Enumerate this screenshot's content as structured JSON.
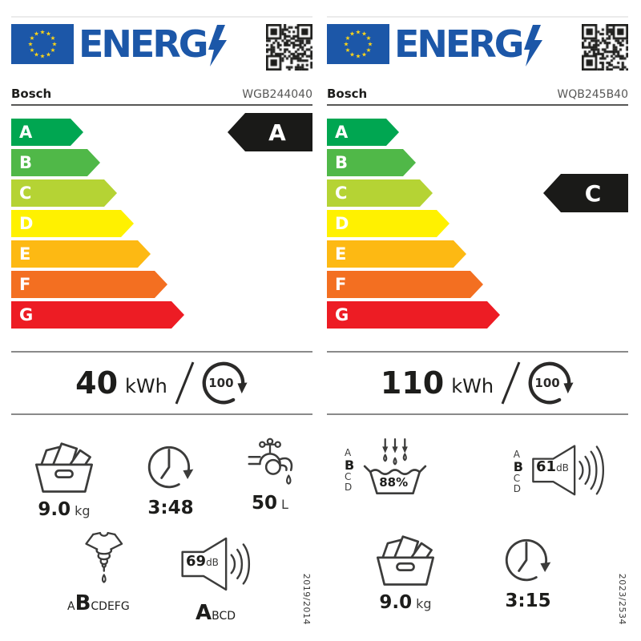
{
  "logo": {
    "text": "ENERG"
  },
  "scale": [
    "A",
    "B",
    "C",
    "D",
    "E",
    "F",
    "G"
  ],
  "scale_abcd": [
    "A",
    "B",
    "C",
    "D"
  ],
  "colors": {
    "eu_blue": "#1c57a8",
    "star_yellow": "#ffd617",
    "bars": [
      "#00a651",
      "#50b848",
      "#b5d334",
      "#fff100",
      "#fdb913",
      "#f36f21",
      "#ed1c24"
    ],
    "indicator_black": "#1a1a18",
    "text_dark": "#1d1d1b",
    "text_gray": "#575756"
  },
  "labels": [
    {
      "brand": "Bosch",
      "model": "WGB244040",
      "rating": {
        "letter": "A",
        "row": 0
      },
      "energy": {
        "value": "40",
        "unit": "kWh",
        "per_cycles": "100"
      },
      "capacity": {
        "value": "9.0",
        "unit": "kg"
      },
      "duration": "3:48",
      "water": {
        "value": "50",
        "unit": "L"
      },
      "spin": {
        "prefix": "A",
        "highlight": "B",
        "suffix": "CDEFG"
      },
      "noise": {
        "value": "69",
        "unit": "dB",
        "highlight": "A",
        "suffix": "BCD"
      },
      "regulation": "2019/2014"
    },
    {
      "brand": "Bosch",
      "model": "WQB245B40",
      "rating": {
        "letter": "C",
        "row": 2
      },
      "energy": {
        "value": "110",
        "unit": "kWh",
        "per_cycles": "100"
      },
      "rinse": {
        "percent": "88%",
        "highlight": "B"
      },
      "noise": {
        "value": "61",
        "unit": "dB",
        "highlight": "B"
      },
      "capacity": {
        "value": "9.0",
        "unit": "kg"
      },
      "duration": "3:15",
      "regulation": "2023/2534"
    }
  ]
}
